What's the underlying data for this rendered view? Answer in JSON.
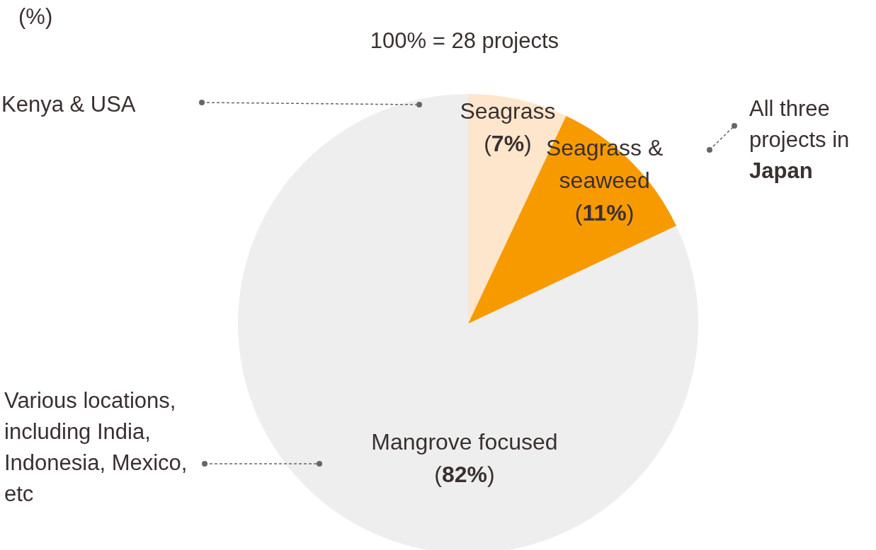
{
  "chart_data": {
    "type": "pie",
    "title": "(%)",
    "subtitle": "100% = 28 projects",
    "categories": [
      "Seagrass",
      "Seagrass & seaweed",
      "Mangrove focused"
    ],
    "values": [
      7,
      11,
      82
    ],
    "value_labels": [
      "(7%)",
      "(11%)",
      "(82%)"
    ],
    "colors": [
      "#fde6cc",
      "#f79a00",
      "#eeeeee"
    ],
    "annotations": [
      "Kenya & USA",
      "All three projects in Japan",
      "Various locations, including India, Indonesia, Mexico, etc"
    ]
  }
}
